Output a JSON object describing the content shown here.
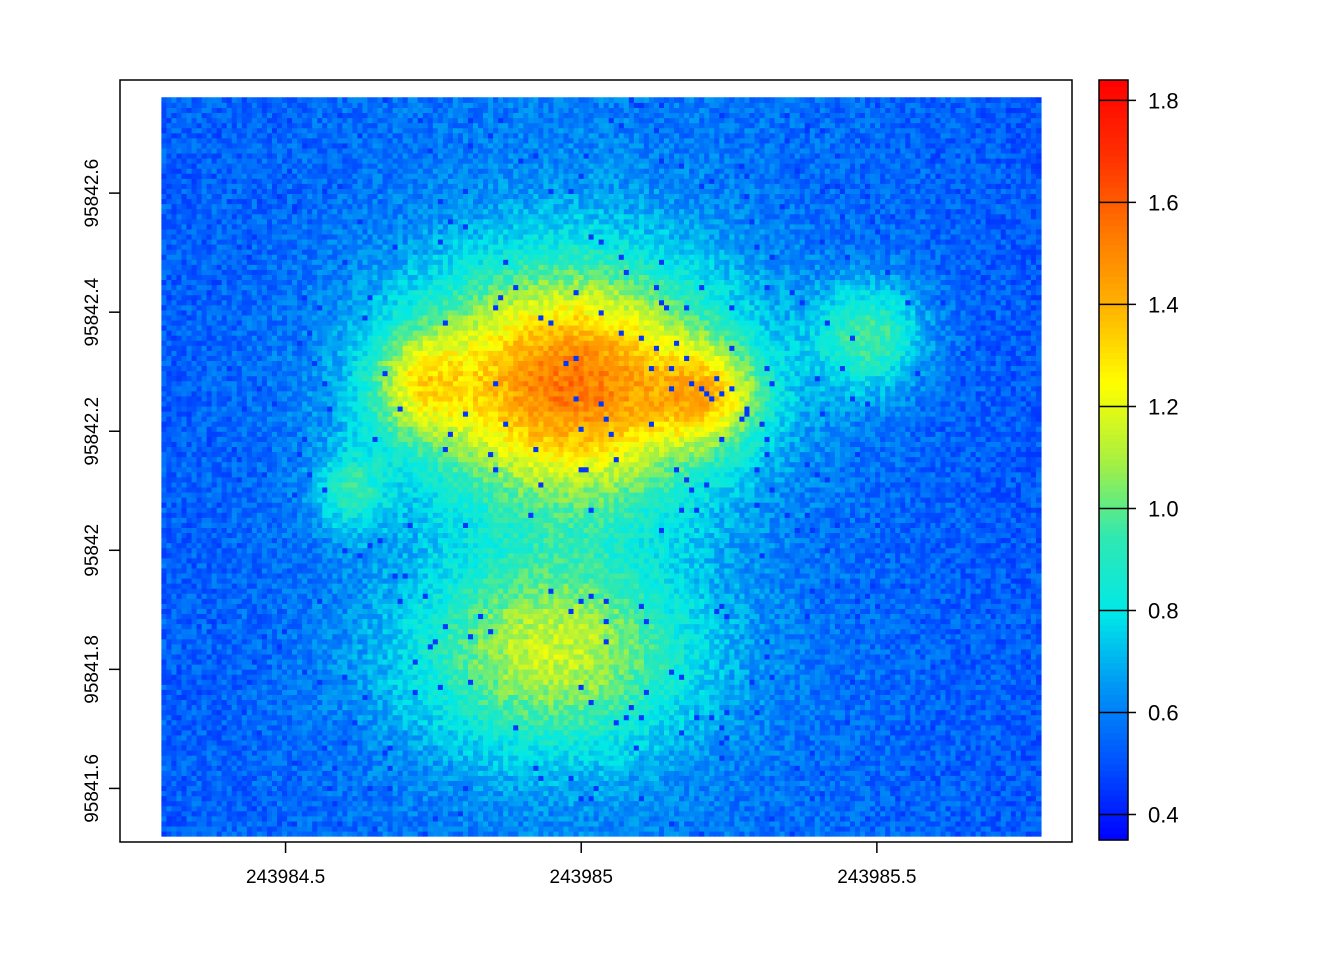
{
  "chart_data": {
    "type": "heatmap",
    "title": "",
    "xlabel": "",
    "ylabel": "",
    "xlim": [
      243984.22,
      243985.83
    ],
    "ylim": [
      95841.51,
      95842.79
    ],
    "x_ticks": [
      {
        "value": 243984.5,
        "label": "243984.5"
      },
      {
        "value": 243985.0,
        "label": "243985"
      },
      {
        "value": 243985.5,
        "label": "243985.5"
      }
    ],
    "y_ticks": [
      {
        "value": 95841.6,
        "label": "95841.6"
      },
      {
        "value": 95841.8,
        "label": "95841.8"
      },
      {
        "value": 95842.0,
        "label": "95842"
      },
      {
        "value": 95842.2,
        "label": "95842.2"
      },
      {
        "value": 95842.4,
        "label": "95842.4"
      },
      {
        "value": 95842.6,
        "label": "95842.6"
      }
    ],
    "legend": {
      "placement": "right",
      "range": [
        0.35,
        1.84
      ],
      "ticks": [
        {
          "value": 0.4,
          "label": "0.4"
        },
        {
          "value": 0.6,
          "label": "0.6"
        },
        {
          "value": 0.8,
          "label": "0.8"
        },
        {
          "value": 1.0,
          "label": "1.0"
        },
        {
          "value": 1.2,
          "label": "1.2"
        },
        {
          "value": 1.4,
          "label": "1.4"
        },
        {
          "value": 1.6,
          "label": "1.6"
        },
        {
          "value": 1.8,
          "label": "1.8"
        }
      ],
      "colors": [
        "#0000ff",
        "#0050ff",
        "#0095f5",
        "#00e8e8",
        "#30e8b0",
        "#a8f040",
        "#ffff00",
        "#ffb400",
        "#ff7800",
        "#ff3000",
        "#ff0000"
      ]
    },
    "raster": {
      "extent_x": [
        243984.29,
        243985.78
      ],
      "extent_y": [
        95841.52,
        95842.76
      ],
      "background_value": 0.6,
      "hotspots": [
        {
          "x": 243984.98,
          "y": 95842.28,
          "sx": 0.27,
          "sy": 0.2,
          "amp": 0.95
        },
        {
          "x": 243985.22,
          "y": 95842.26,
          "sx": 0.09,
          "sy": 0.08,
          "amp": 0.4
        },
        {
          "x": 243984.72,
          "y": 95842.28,
          "sx": 0.08,
          "sy": 0.09,
          "amp": 0.35
        },
        {
          "x": 243985.49,
          "y": 95842.36,
          "sx": 0.09,
          "sy": 0.09,
          "amp": 0.4
        },
        {
          "x": 243984.95,
          "y": 95841.83,
          "sx": 0.25,
          "sy": 0.17,
          "amp": 0.55
        },
        {
          "x": 243984.61,
          "y": 95842.1,
          "sx": 0.06,
          "sy": 0.07,
          "amp": 0.3
        }
      ]
    }
  }
}
